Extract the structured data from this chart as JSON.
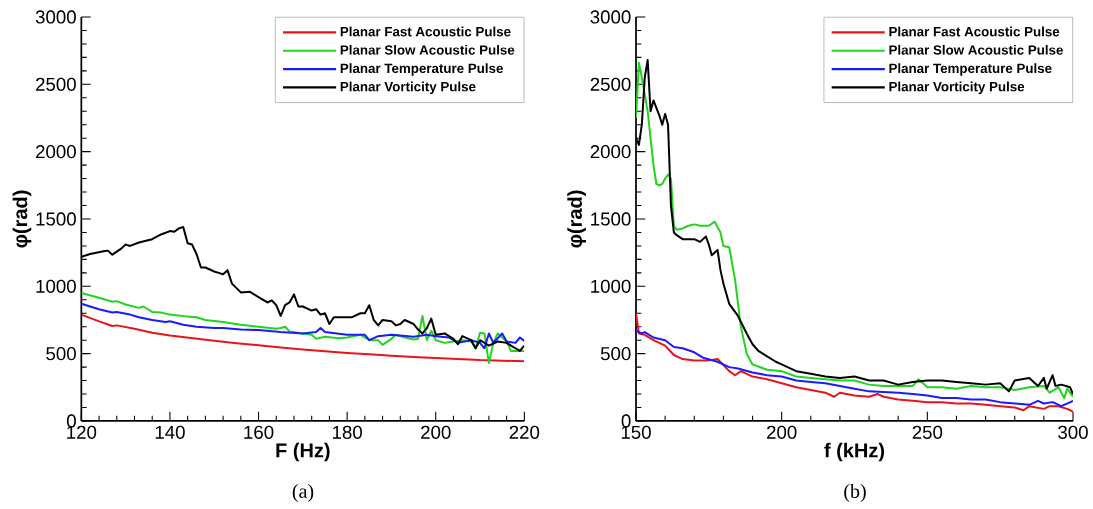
{
  "chart_data": [
    {
      "type": "line",
      "xlabel": "F (Hz)",
      "ylabel": "φ(rad)",
      "xlim": [
        120,
        220
      ],
      "ylim": [
        0,
        3000
      ],
      "xticks": [
        120,
        140,
        160,
        180,
        200,
        220
      ],
      "yticks": [
        0,
        500,
        1000,
        1500,
        2000,
        2500,
        3000
      ],
      "legend": "top right",
      "annotations": [
        "(a)"
      ],
      "series": [
        {
          "name": "Planar Fast Acoustic Pulse",
          "color": "#e8141c",
          "x": [
            120,
            124,
            127,
            128,
            132,
            136,
            140,
            145,
            150,
            155,
            160,
            165,
            170,
            175,
            180,
            185,
            190,
            195,
            200,
            205,
            210,
            215,
            220
          ],
          "values": [
            790,
            740,
            705,
            710,
            685,
            655,
            635,
            615,
            595,
            578,
            562,
            545,
            530,
            517,
            505,
            495,
            485,
            475,
            467,
            460,
            452,
            448,
            443
          ]
        },
        {
          "name": "Planar Slow Acoustic Pulse",
          "color": "#22d41e",
          "x": [
            120,
            124,
            127,
            128,
            130,
            133,
            134,
            136,
            138,
            140,
            144,
            146,
            148,
            152,
            156,
            160,
            164,
            165,
            166,
            167,
            170,
            172,
            173,
            175,
            178,
            180,
            183,
            185,
            187,
            188,
            190,
            191,
            193,
            195,
            196,
            197,
            198,
            199,
            200,
            202,
            204,
            206,
            208,
            209,
            210,
            211,
            212,
            213,
            214,
            216,
            217,
            220
          ],
          "values": [
            950,
            915,
            885,
            890,
            865,
            840,
            850,
            810,
            805,
            790,
            775,
            770,
            750,
            735,
            715,
            700,
            685,
            690,
            700,
            665,
            650,
            640,
            610,
            625,
            615,
            620,
            640,
            600,
            600,
            565,
            610,
            640,
            620,
            605,
            610,
            780,
            600,
            670,
            600,
            580,
            590,
            600,
            590,
            540,
            655,
            650,
            430,
            580,
            650,
            590,
            520,
            520
          ]
        },
        {
          "name": "Planar Temperature Pulse",
          "color": "#1a1aff",
          "x": [
            120,
            124,
            127,
            128,
            131,
            133,
            136,
            139,
            140,
            143,
            146,
            150,
            152,
            156,
            160,
            165,
            170,
            173,
            174,
            175,
            180,
            184,
            185,
            187,
            190,
            195,
            198,
            200,
            203,
            205,
            208,
            210,
            211,
            212,
            213,
            215,
            216,
            218,
            219,
            220
          ],
          "values": [
            870,
            830,
            805,
            810,
            790,
            770,
            750,
            735,
            740,
            715,
            700,
            690,
            690,
            680,
            675,
            660,
            650,
            660,
            690,
            660,
            640,
            640,
            600,
            630,
            640,
            625,
            640,
            630,
            620,
            580,
            600,
            580,
            540,
            650,
            580,
            650,
            590,
            580,
            620,
            595
          ]
        },
        {
          "name": "Planar Vorticity Pulse",
          "color": "#000000",
          "x": [
            120,
            122,
            125,
            126,
            127,
            129,
            130,
            131,
            133,
            136,
            138,
            140,
            141,
            142,
            143,
            144,
            145,
            146,
            147,
            148,
            150,
            151,
            152,
            153,
            154,
            156,
            158,
            160,
            162,
            163,
            164,
            165,
            166,
            167,
            168,
            169,
            170,
            172,
            173,
            174,
            175,
            176,
            177,
            179,
            181,
            183,
            184,
            185,
            186,
            187,
            188,
            190,
            191,
            192,
            193,
            195,
            196,
            197,
            198,
            199,
            200,
            202,
            204,
            205,
            206,
            208,
            209,
            210,
            212,
            214,
            216,
            218,
            219,
            220
          ],
          "values": [
            1220,
            1240,
            1260,
            1265,
            1235,
            1280,
            1310,
            1300,
            1325,
            1350,
            1385,
            1410,
            1405,
            1430,
            1440,
            1320,
            1310,
            1240,
            1140,
            1140,
            1110,
            1100,
            1090,
            1120,
            1020,
            955,
            960,
            920,
            880,
            895,
            860,
            780,
            860,
            880,
            940,
            850,
            850,
            820,
            830,
            790,
            800,
            720,
            770,
            770,
            770,
            800,
            800,
            860,
            750,
            710,
            750,
            740,
            710,
            720,
            750,
            720,
            680,
            650,
            690,
            760,
            640,
            650,
            610,
            570,
            630,
            600,
            540,
            600,
            560,
            590,
            580,
            540,
            520,
            560
          ]
        }
      ]
    },
    {
      "type": "line",
      "xlabel": "f (kHz)",
      "ylabel": "φ(rad)",
      "xlim": [
        150,
        300
      ],
      "ylim": [
        0,
        3000
      ],
      "xticks": [
        150,
        200,
        250,
        300
      ],
      "yticks": [
        0,
        500,
        1000,
        1500,
        2000,
        2500,
        3000
      ],
      "legend": "top right",
      "annotations": [
        "(b)"
      ],
      "series": [
        {
          "name": "Planar Fast Acoustic Pulse",
          "color": "#e8141c",
          "x": [
            150,
            151,
            153,
            156,
            160,
            163,
            166,
            170,
            175,
            178,
            182,
            184,
            186,
            190,
            195,
            200,
            205,
            210,
            215,
            218,
            220,
            225,
            230,
            233,
            235,
            240,
            245,
            250,
            255,
            260,
            265,
            270,
            275,
            280,
            283,
            285,
            290,
            292,
            295,
            298,
            300
          ],
          "values": [
            800,
            650,
            640,
            600,
            560,
            490,
            460,
            450,
            450,
            460,
            370,
            340,
            370,
            330,
            310,
            280,
            250,
            230,
            210,
            180,
            210,
            190,
            180,
            200,
            180,
            160,
            150,
            140,
            140,
            130,
            130,
            120,
            110,
            100,
            80,
            110,
            90,
            110,
            110,
            90,
            70
          ]
        },
        {
          "name": "Planar Slow Acoustic Pulse",
          "color": "#22d41e",
          "x": [
            150,
            151,
            152,
            154,
            156,
            157,
            158,
            159,
            160,
            161,
            162,
            163,
            164,
            166,
            168,
            170,
            172,
            175,
            177,
            179,
            180,
            182,
            184,
            186,
            188,
            190,
            195,
            200,
            205,
            210,
            215,
            220,
            225,
            230,
            235,
            240,
            245,
            247,
            250,
            255,
            260,
            265,
            270,
            275,
            280,
            285,
            290,
            292,
            295,
            297,
            298,
            300
          ],
          "values": [
            2250,
            2660,
            2550,
            2300,
            1900,
            1760,
            1750,
            1760,
            1800,
            1830,
            1800,
            1450,
            1420,
            1430,
            1450,
            1460,
            1450,
            1450,
            1480,
            1400,
            1300,
            1290,
            1050,
            700,
            500,
            420,
            380,
            370,
            330,
            320,
            310,
            300,
            300,
            270,
            260,
            260,
            260,
            310,
            250,
            250,
            240,
            260,
            250,
            250,
            230,
            250,
            260,
            210,
            250,
            170,
            240,
            180
          ]
        },
        {
          "name": "Planar Temperature Pulse",
          "color": "#1a1aff",
          "x": [
            150,
            152,
            153,
            156,
            160,
            163,
            166,
            170,
            173,
            178,
            182,
            185,
            190,
            195,
            200,
            205,
            210,
            215,
            220,
            225,
            230,
            240,
            245,
            250,
            255,
            260,
            265,
            270,
            275,
            280,
            285,
            288,
            290,
            293,
            296,
            298,
            300
          ],
          "values": [
            670,
            650,
            660,
            620,
            600,
            550,
            540,
            510,
            470,
            440,
            400,
            390,
            360,
            340,
            330,
            300,
            290,
            280,
            260,
            240,
            220,
            210,
            200,
            190,
            170,
            170,
            160,
            160,
            140,
            130,
            120,
            150,
            130,
            140,
            110,
            130,
            150
          ]
        },
        {
          "name": "Planar Vorticity Pulse",
          "color": "#000000",
          "x": [
            150,
            151,
            152,
            153,
            154,
            155,
            156,
            158,
            159,
            160,
            161,
            162,
            163,
            164,
            166,
            168,
            170,
            172,
            174,
            175,
            176,
            178,
            179,
            180,
            182,
            185,
            188,
            190,
            192,
            195,
            198,
            200,
            205,
            210,
            215,
            220,
            225,
            230,
            235,
            240,
            245,
            250,
            255,
            260,
            265,
            270,
            275,
            278,
            280,
            285,
            288,
            290,
            291,
            293,
            294,
            296,
            299,
            300
          ],
          "values": [
            2100,
            2050,
            2200,
            2550,
            2680,
            2300,
            2380,
            2270,
            2200,
            2280,
            2200,
            1600,
            1400,
            1380,
            1350,
            1350,
            1350,
            1330,
            1370,
            1310,
            1230,
            1270,
            1120,
            1020,
            870,
            780,
            650,
            570,
            520,
            480,
            440,
            420,
            370,
            350,
            330,
            320,
            330,
            300,
            300,
            270,
            290,
            300,
            300,
            290,
            280,
            270,
            280,
            220,
            300,
            320,
            260,
            320,
            240,
            340,
            260,
            270,
            250,
            200
          ]
        }
      ]
    }
  ]
}
